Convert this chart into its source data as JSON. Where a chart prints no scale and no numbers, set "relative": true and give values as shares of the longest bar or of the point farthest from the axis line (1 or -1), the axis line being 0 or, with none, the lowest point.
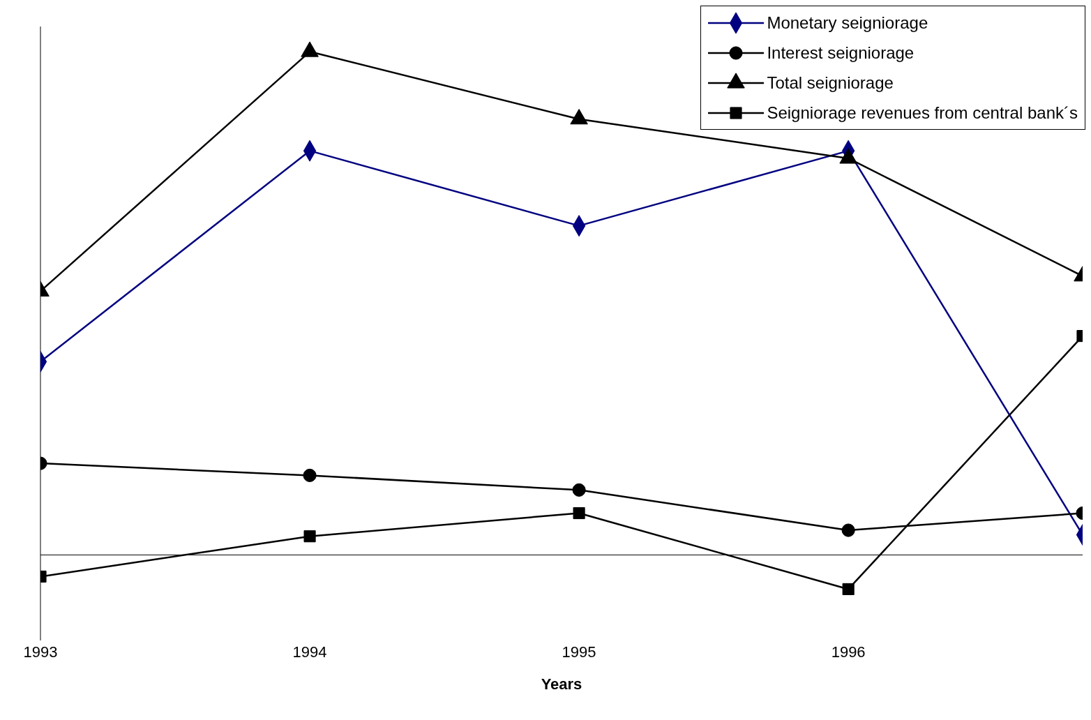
{
  "chart_data": {
    "type": "line",
    "relative": true,
    "xlabel": "Years",
    "x": [
      1993,
      1994,
      1995,
      1996,
      1996.87
    ],
    "xlim": [
      1993,
      1996.87
    ],
    "xticks": [
      1993,
      1994,
      1995,
      1996
    ],
    "legend": "top right",
    "grid": false,
    "series": [
      {
        "name": "Monetary seigniorage",
        "color": "#000080",
        "marker": "diamond",
        "values": [
          0.384,
          0.803,
          0.654,
          0.803,
          0.04
        ]
      },
      {
        "name": "Interest seigniorage",
        "color": "#000000",
        "marker": "circle",
        "values": [
          0.182,
          0.158,
          0.129,
          0.049,
          0.083
        ]
      },
      {
        "name": "Total seigniorage",
        "color": "#000000",
        "marker": "triangle",
        "values": [
          0.524,
          1,
          0.866,
          0.788,
          0.554
        ]
      },
      {
        "name": "Seigniorage revenues from central bank´s",
        "color": "#000000",
        "marker": "square",
        "values": [
          -0.043,
          0.037,
          0.083,
          -0.068,
          0.435
        ]
      }
    ]
  }
}
